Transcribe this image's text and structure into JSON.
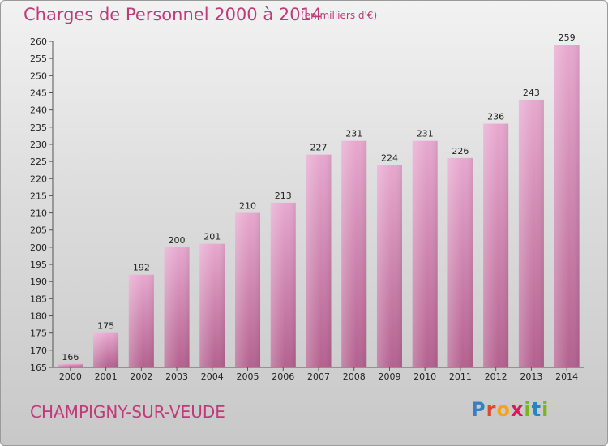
{
  "header": {
    "title": "Charges de Personnel 2000 à 2014",
    "unit": "(en milliers d'€)"
  },
  "footer": {
    "commune": "CHAMPIGNY-SUR-VEUDE",
    "logo_letters": [
      "P",
      "r",
      "o",
      "x",
      "i",
      "t",
      "i"
    ],
    "logo_colors": [
      "#3a7fc4",
      "#e0482c",
      "#f2a51a",
      "#d81b60",
      "#7ab51d",
      "#1e88c8",
      "#7ab51d"
    ]
  },
  "colors": {
    "accent": "#c03a7a",
    "bar_top": "#e7a8cf",
    "bar_bottom": "#b4618f"
  },
  "chart_data": {
    "type": "bar",
    "title": "Charges de Personnel 2000 à 2014",
    "categories": [
      "2000",
      "2001",
      "2002",
      "2003",
      "2004",
      "2005",
      "2006",
      "2007",
      "2008",
      "2009",
      "2010",
      "2011",
      "2012",
      "2013",
      "2014"
    ],
    "values": [
      166,
      175,
      192,
      200,
      201,
      210,
      213,
      227,
      231,
      224,
      231,
      226,
      236,
      243,
      259
    ],
    "ylim": [
      165,
      260
    ],
    "yticks": [
      165,
      170,
      175,
      180,
      185,
      190,
      195,
      200,
      205,
      210,
      215,
      220,
      225,
      230,
      235,
      240,
      245,
      250,
      255,
      260
    ],
    "grid": false,
    "xlabel": "",
    "ylabel": ""
  }
}
